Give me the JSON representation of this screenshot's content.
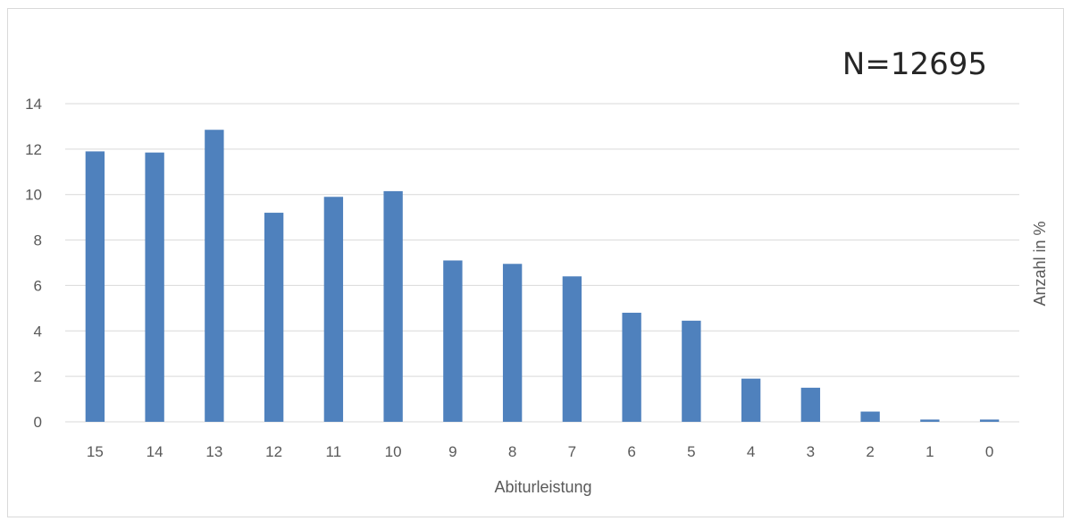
{
  "chart_data": {
    "type": "bar",
    "annotation": "N=12695",
    "xlabel": "Abiturleistung",
    "ylabel": "Anzahl in %",
    "categories": [
      "15",
      "14",
      "13",
      "12",
      "11",
      "10",
      "9",
      "8",
      "7",
      "6",
      "5",
      "4",
      "3",
      "2",
      "1",
      "0"
    ],
    "values": [
      11.9,
      11.85,
      12.85,
      9.2,
      9.9,
      10.15,
      7.1,
      6.95,
      6.4,
      4.8,
      4.45,
      1.9,
      1.5,
      0.45,
      0.1,
      0.1
    ],
    "ylim": [
      0,
      14
    ],
    "yticks": [
      "0",
      "2",
      "4",
      "6",
      "8",
      "10",
      "12",
      "14"
    ],
    "grid": true,
    "legend": "none",
    "bar_color": "#4f81bd",
    "grid_color": "#d9d9d9"
  }
}
